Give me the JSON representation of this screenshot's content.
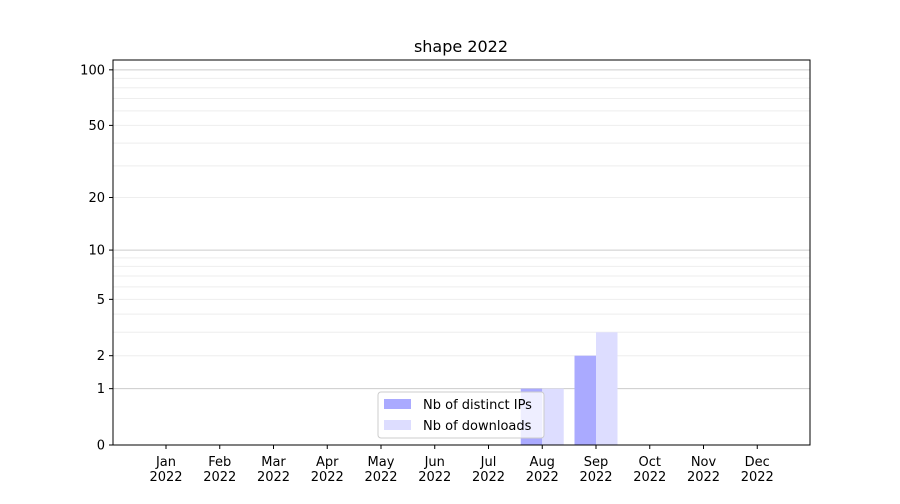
{
  "chart_data": {
    "type": "bar",
    "title": "shape 2022",
    "xlabel": "",
    "ylabel": "",
    "yscale": "log(1+y)",
    "ylim": [
      0,
      113
    ],
    "yticks": [
      0,
      1,
      2,
      5,
      10,
      20,
      50,
      100
    ],
    "ytick_labels": [
      "0",
      "1",
      "2",
      "5",
      "10",
      "20",
      "50",
      "100"
    ],
    "grid": true,
    "categories": [
      "Jan\n2022",
      "Feb\n2022",
      "Mar\n2022",
      "Apr\n2022",
      "May\n2022",
      "Jun\n2022",
      "Jul\n2022",
      "Aug\n2022",
      "Sep\n2022",
      "Oct\n2022",
      "Nov\n2022",
      "Dec\n2022"
    ],
    "category_lines": [
      [
        "Jan",
        "2022"
      ],
      [
        "Feb",
        "2022"
      ],
      [
        "Mar",
        "2022"
      ],
      [
        "Apr",
        "2022"
      ],
      [
        "May",
        "2022"
      ],
      [
        "Jun",
        "2022"
      ],
      [
        "Jul",
        "2022"
      ],
      [
        "Aug",
        "2022"
      ],
      [
        "Sep",
        "2022"
      ],
      [
        "Oct",
        "2022"
      ],
      [
        "Nov",
        "2022"
      ],
      [
        "Dec",
        "2022"
      ]
    ],
    "series": [
      {
        "name": "Nb of distinct IPs",
        "color": "#aaaaff",
        "values": [
          0,
          0,
          0,
          0,
          0,
          0,
          0,
          1,
          2,
          0,
          0,
          0
        ]
      },
      {
        "name": "Nb of downloads",
        "color": "#ddddff",
        "values": [
          0,
          0,
          0,
          0,
          0,
          0,
          0,
          1,
          3,
          0,
          0,
          0
        ]
      }
    ],
    "legend": "lower-center"
  }
}
